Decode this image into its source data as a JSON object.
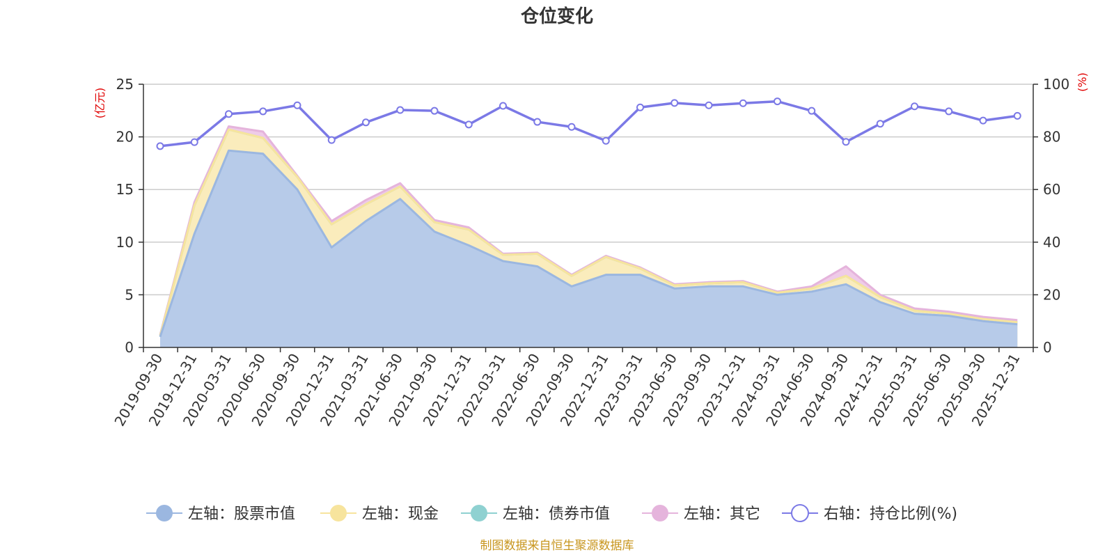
{
  "chart_data": {
    "type": "area",
    "title": "仓位变化",
    "left_unit": "(亿元)",
    "right_unit": "(%)",
    "source": "制图数据来自恒生聚源数据库",
    "left_axis": {
      "min": 0,
      "max": 25,
      "ticks": [
        "0",
        "5",
        "10",
        "15",
        "20",
        "25"
      ]
    },
    "right_axis": {
      "min": 0,
      "max": 100,
      "ticks": [
        "0",
        "20",
        "40",
        "60",
        "80",
        "100"
      ]
    },
    "grid": true,
    "legend_position": "bottom",
    "categories": [
      "2019-09-30",
      "2019-12-31",
      "2020-03-31",
      "2020-06-30",
      "2020-09-30",
      "2020-12-31",
      "2021-03-31",
      "2021-06-30",
      "2021-09-30",
      "2021-12-31",
      "2022-03-31",
      "2022-06-30",
      "2022-09-30",
      "2022-12-31",
      "2023-03-31",
      "2023-06-30",
      "2023-09-30",
      "2023-12-31",
      "2024-03-31",
      "2024-06-30",
      "2024-09-30",
      "2024-12-31",
      "2025-03-31",
      "2025-06-30",
      "2025-09-30",
      "2025-12-31"
    ],
    "series": [
      {
        "name": "左轴：股票市值",
        "axis": "left",
        "stack": true,
        "color": "#9bb7e0",
        "fill": "#b7cbe9",
        "values": [
          1.0,
          10.8,
          18.7,
          18.4,
          15.0,
          9.5,
          12.0,
          14.1,
          11.0,
          9.7,
          8.2,
          7.7,
          5.8,
          6.9,
          6.9,
          5.6,
          5.8,
          5.8,
          5.0,
          5.3,
          6.0,
          4.3,
          3.2,
          3.0,
          2.5,
          2.2
        ]
      },
      {
        "name": "左轴：现金",
        "axis": "left",
        "stack": true,
        "color": "#f7e49d",
        "fill": "#faecbc",
        "values": [
          0.1,
          2.7,
          2.0,
          1.5,
          1.2,
          2.2,
          1.6,
          1.2,
          0.9,
          1.5,
          0.6,
          1.2,
          1.0,
          1.7,
          0.6,
          0.3,
          0.3,
          0.4,
          0.2,
          0.3,
          0.8,
          0.5,
          0.3,
          0.2,
          0.2,
          0.2
        ]
      },
      {
        "name": "左轴：债券市值",
        "axis": "left",
        "stack": true,
        "color": "#8fd1d1",
        "fill": "#b8e2e2",
        "values": [
          0,
          0,
          0,
          0,
          0,
          0,
          0,
          0,
          0,
          0,
          0,
          0,
          0,
          0,
          0,
          0,
          0,
          0,
          0,
          0,
          0,
          0,
          0,
          0,
          0,
          0
        ]
      },
      {
        "name": "左轴：其它",
        "axis": "left",
        "stack": true,
        "color": "#e5b4dc",
        "fill": "#efcbe8",
        "values": [
          0.1,
          0.3,
          0.3,
          0.6,
          0.1,
          0.3,
          0.4,
          0.3,
          0.2,
          0.2,
          0.1,
          0.1,
          0.1,
          0.1,
          0.1,
          0.1,
          0.1,
          0.1,
          0.1,
          0.2,
          0.9,
          0.2,
          0.2,
          0.2,
          0.2,
          0.2
        ]
      },
      {
        "name": "右轴：持仓比例(%)",
        "axis": "right",
        "type": "line",
        "color": "#7b79e6",
        "values": [
          76.5,
          78.0,
          88.7,
          89.7,
          92.0,
          78.8,
          85.5,
          90.2,
          89.9,
          84.7,
          91.8,
          85.7,
          83.8,
          78.5,
          91.2,
          92.9,
          92.0,
          92.8,
          93.5,
          89.9,
          78.1,
          85.0,
          91.6,
          89.7,
          86.2,
          88.0
        ]
      }
    ]
  }
}
